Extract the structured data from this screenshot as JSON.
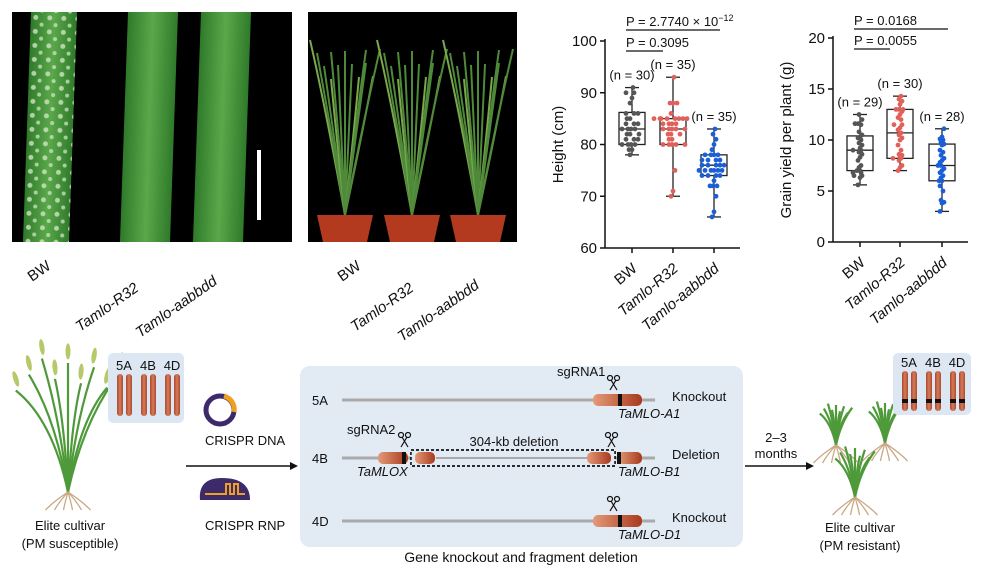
{
  "colors": {
    "bw": "#555555",
    "r32": "#e0605a",
    "aabbdd": "#1a5fd6",
    "panel_bg": "#e2eaf4",
    "gene": "#b6452a"
  },
  "photo_leaves": {
    "labels": [
      "BW",
      "Tamlo-R32",
      "Tamlo-aabbdd"
    ]
  },
  "photo_plants": {
    "labels": [
      "BW",
      "Tamlo-R32",
      "Tamlo-aabbdd"
    ]
  },
  "chart_data": [
    {
      "type": "box",
      "ylabel": "Height (cm)",
      "ylim": [
        60,
        100
      ],
      "yticks": [
        "60",
        "70",
        "80",
        "90",
        "100"
      ],
      "categories": [
        "BW",
        "Tamlo-R32",
        "Tamlo-aabbdd"
      ],
      "n_labels": [
        "(n = 30)",
        "(n = 35)",
        "(n = 35)"
      ],
      "pvalues": [
        {
          "text": "P = 2.7740 × 10",
          "sup": "−12",
          "between": [
            0,
            2
          ]
        },
        {
          "text": "P = 0.3095",
          "between": [
            0,
            1
          ]
        }
      ],
      "series": [
        {
          "name": "BW",
          "box": [
            78,
            80,
            83,
            86.2,
            91
          ],
          "points": [
            78,
            79,
            79,
            80,
            80,
            80,
            80,
            81,
            81,
            81,
            82,
            82,
            82,
            83,
            83,
            83,
            83,
            84,
            84,
            84,
            85,
            85,
            86,
            86,
            86,
            88,
            89,
            90,
            90,
            91
          ]
        },
        {
          "name": "Tamlo-R32",
          "box": [
            70,
            80,
            83,
            85,
            93
          ],
          "points": [
            70,
            71,
            75,
            80,
            80,
            80,
            80,
            80,
            81,
            81,
            82,
            82,
            82,
            83,
            83,
            83,
            83,
            83,
            84,
            84,
            84,
            84,
            85,
            85,
            85,
            85,
            85,
            85,
            85,
            85,
            86,
            88,
            88,
            88,
            93
          ]
        },
        {
          "name": "Tamlo-aabbdd",
          "box": [
            66,
            74,
            76,
            78,
            83
          ],
          "points": [
            66,
            67,
            70,
            72,
            72,
            72,
            73,
            74,
            74,
            74,
            74,
            75,
            75,
            75,
            75,
            75,
            75,
            76,
            76,
            76,
            76,
            76,
            77,
            77,
            77,
            77,
            78,
            78,
            78,
            78,
            79,
            80,
            81,
            82,
            83
          ]
        }
      ]
    },
    {
      "type": "box",
      "ylabel": "Grain yield per plant (g)",
      "ylim": [
        0,
        20
      ],
      "yticks": [
        "0",
        "5",
        "10",
        "15",
        "20"
      ],
      "categories": [
        "BW",
        "Tamlo-R32",
        "Tamlo-aabbdd"
      ],
      "n_labels": [
        "(n = 29)",
        "(n = 30)",
        "(n = 28)"
      ],
      "pvalues": [
        {
          "text": "P = 0.0168",
          "between": [
            0,
            2
          ]
        },
        {
          "text": "P = 0.0055",
          "between": [
            0,
            1
          ]
        }
      ],
      "series": [
        {
          "name": "BW",
          "box": [
            5.6,
            7,
            9,
            10.4,
            12.5
          ],
          "points": [
            5.6,
            6.3,
            6.5,
            6.5,
            6.8,
            6.8,
            7,
            7,
            7.3,
            7.5,
            8,
            8.3,
            8.6,
            8.8,
            9,
            9,
            9.2,
            9.5,
            9.7,
            10,
            10.2,
            10.3,
            10.5,
            10.8,
            11.5,
            11.6,
            11.6,
            12,
            12.5
          ]
        },
        {
          "name": "Tamlo-R32",
          "box": [
            7,
            8.2,
            10.7,
            13,
            14.3
          ],
          "points": [
            7,
            7.3,
            7.5,
            8,
            8.2,
            8.2,
            8.4,
            8.5,
            8.6,
            9,
            9.5,
            10,
            10.2,
            10.5,
            10.7,
            11,
            11.2,
            11.5,
            11.5,
            12,
            12.2,
            12.5,
            12.8,
            13,
            13,
            13,
            13.5,
            13.8,
            14,
            14.3
          ]
        },
        {
          "name": "Tamlo-aabbdd",
          "box": [
            3,
            6,
            7.5,
            9.6,
            11.1
          ],
          "points": [
            3,
            3.8,
            3.9,
            4.1,
            5,
            5.5,
            6,
            6,
            6.3,
            6.5,
            6.8,
            7,
            7.2,
            7.5,
            7.5,
            7.8,
            8,
            8.2,
            8.5,
            8.8,
            9,
            9.5,
            9.6,
            9.8,
            10,
            10.1,
            10.3,
            11.1
          ]
        }
      ]
    }
  ],
  "workflow": {
    "left_plant": {
      "line1": "Elite cultivar",
      "line2": "(PM susceptible)",
      "chromosomes": [
        "5A",
        "4B",
        "4D"
      ]
    },
    "crispr_dna": "CRISPR DNA",
    "crispr_rnp": "CRISPR RNP",
    "panel": {
      "caption": "Gene knockout and fragment deletion",
      "rows": [
        {
          "chrom": "5A",
          "result": "Knockout",
          "gene": "TaMLO-A1",
          "sgrna": "sgRNA1"
        },
        {
          "chrom": "4B",
          "result": "Deletion",
          "gene": "TaMLO-B1",
          "gene2": "TaMLOX",
          "sgrna": "sgRNA2",
          "deletion": "304-kb deletion"
        },
        {
          "chrom": "4D",
          "result": "Knockout",
          "gene": "TaMLO-D1"
        }
      ]
    },
    "time": {
      "line1": "2–3",
      "line2": "months"
    },
    "right_plant": {
      "line1": "Elite cultivar",
      "line2": "(PM resistant)",
      "chromosomes": [
        "5A",
        "4B",
        "4D"
      ]
    }
  }
}
